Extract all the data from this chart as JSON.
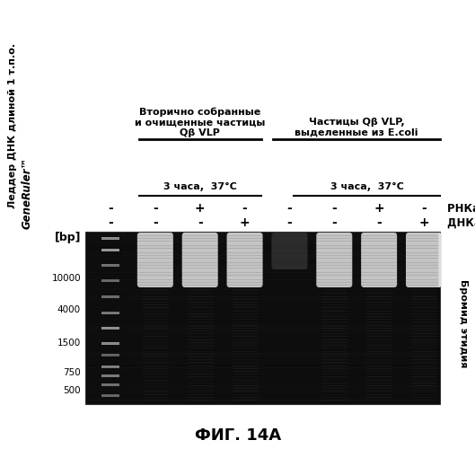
{
  "title": "ФИГ. 14А",
  "group1_header": "Вторично собранные\nи очищенные частицы\nQβ VLP",
  "group2_header": "Частицы Qβ VLP,\nвыделенные из E.coli",
  "incubation_label": "3 часа,  37°C",
  "rnase_label": "РНКаза А",
  "dnase_label": "ДНКаза I",
  "rnase_signs": [
    "-",
    "-",
    "+",
    "-",
    "-",
    "-",
    "+",
    "-"
  ],
  "dnase_signs": [
    "-",
    "-",
    "-",
    "+",
    "-",
    "-",
    "-",
    "+"
  ],
  "bp_labels": [
    "10000",
    "4000",
    "1500",
    "750",
    "500"
  ],
  "fig_bg": "#ffffff",
  "left_text1": "Леддер ДНК длиной 1 т.п.о.",
  "left_text2": "GeneRuler™",
  "right_text": "Бромид этидия",
  "bp_label": "[bp]"
}
